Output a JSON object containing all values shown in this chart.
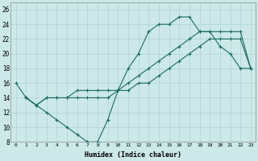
{
  "xlabel": "Humidex (Indice chaleur)",
  "bg_color": "#cce8e8",
  "line_color": "#1a6b60",
  "grid_color": "#aed4d4",
  "xlim": [
    -0.5,
    23.5
  ],
  "ylim": [
    8,
    27
  ],
  "xticks": [
    0,
    1,
    2,
    3,
    4,
    5,
    6,
    7,
    8,
    9,
    10,
    11,
    12,
    13,
    14,
    15,
    16,
    17,
    18,
    19,
    20,
    21,
    22,
    23
  ],
  "yticks": [
    8,
    10,
    12,
    14,
    16,
    18,
    20,
    22,
    24,
    26
  ],
  "line1_x": [
    0,
    1,
    2,
    3,
    4,
    5,
    6,
    7,
    8,
    9,
    10,
    11,
    12,
    13,
    14,
    15,
    16,
    17,
    18,
    19,
    20,
    21,
    22,
    23
  ],
  "line1_y": [
    16,
    14,
    13,
    12,
    11,
    10,
    9,
    8,
    8,
    11,
    15,
    18,
    20,
    23,
    24,
    24,
    25,
    25,
    23,
    23,
    21,
    20,
    18,
    18
  ],
  "line2_x": [
    1,
    2,
    3,
    4,
    5,
    6,
    7,
    8,
    9,
    10,
    11,
    12,
    13,
    14,
    15,
    16,
    17,
    18,
    19,
    20,
    21,
    22,
    23
  ],
  "line2_y": [
    14,
    13,
    14,
    14,
    14,
    14,
    14,
    14,
    14,
    15,
    16,
    17,
    18,
    19,
    20,
    21,
    22,
    23,
    23,
    23,
    23,
    23,
    18
  ],
  "line3_x": [
    1,
    2,
    3,
    4,
    5,
    6,
    7,
    8,
    9,
    10,
    11,
    12,
    13,
    14,
    15,
    16,
    17,
    18,
    19,
    20,
    21,
    22,
    23
  ],
  "line3_y": [
    14,
    13,
    14,
    14,
    14,
    15,
    15,
    15,
    15,
    15,
    15,
    16,
    16,
    17,
    18,
    19,
    20,
    21,
    22,
    22,
    22,
    22,
    18
  ]
}
